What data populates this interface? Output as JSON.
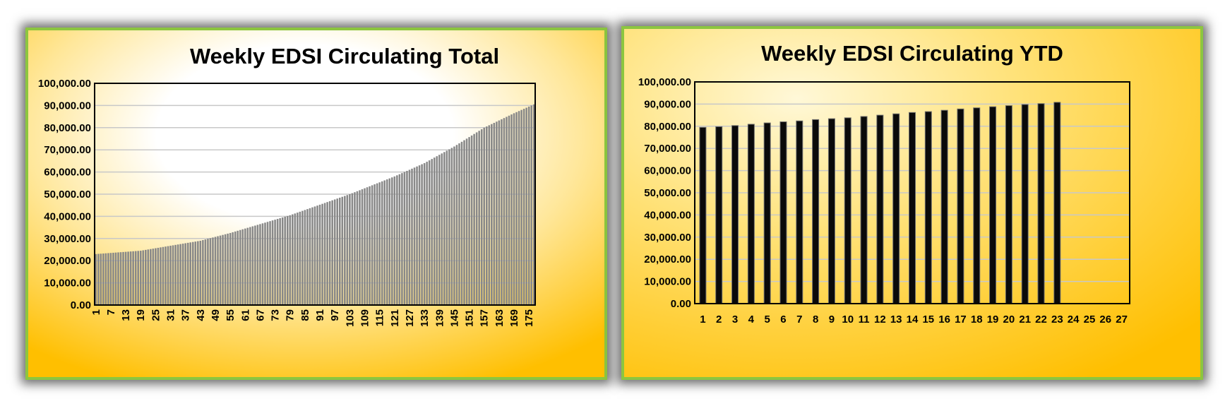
{
  "colors": {
    "panel_border": "#8cc63f",
    "gold": "#ffbf00",
    "light_center": "#ffffff",
    "gridline": "#c8c8c8",
    "bar_left": "#888888",
    "bar_right": "#0a0a0a"
  },
  "chart_data": [
    {
      "type": "bar",
      "title": "Weekly EDSI Circulating Total",
      "xlabel": "",
      "ylabel": "",
      "ylim": [
        0,
        100000
      ],
      "y_ticks": [
        0,
        10000,
        20000,
        30000,
        40000,
        50000,
        60000,
        70000,
        80000,
        90000,
        100000
      ],
      "y_tick_labels": [
        "0.00",
        "10,000.00",
        "20,000.00",
        "30,000.00",
        "40,000.00",
        "50,000.00",
        "60,000.00",
        "70,000.00",
        "80,000.00",
        "90,000.00",
        "100,000.00"
      ],
      "x_tick_labels": [
        "1",
        "7",
        "13",
        "19",
        "25",
        "31",
        "37",
        "43",
        "49",
        "55",
        "61",
        "67",
        "73",
        "79",
        "85",
        "91",
        "97",
        "103",
        "109",
        "115",
        "121",
        "127",
        "133",
        "139",
        "145",
        "151",
        "157",
        "163",
        "169",
        "175"
      ],
      "grid": true,
      "legend": "none",
      "categories_count": 177,
      "sampled_values": [
        {
          "week": 1,
          "value": 23000
        },
        {
          "week": 19,
          "value": 24500
        },
        {
          "week": 43,
          "value": 29000
        },
        {
          "week": 55,
          "value": 32500
        },
        {
          "week": 79,
          "value": 40500
        },
        {
          "week": 103,
          "value": 50000
        },
        {
          "week": 121,
          "value": 58000
        },
        {
          "week": 133,
          "value": 64000
        },
        {
          "week": 145,
          "value": 71500
        },
        {
          "week": 157,
          "value": 80000
        },
        {
          "week": 169,
          "value": 86500
        },
        {
          "week": 177,
          "value": 90500
        }
      ]
    },
    {
      "type": "bar",
      "title": "Weekly EDSI Circulating YTD",
      "xlabel": "",
      "ylabel": "",
      "ylim": [
        0,
        100000
      ],
      "y_ticks": [
        0,
        10000,
        20000,
        30000,
        40000,
        50000,
        60000,
        70000,
        80000,
        90000,
        100000
      ],
      "y_tick_labels": [
        "0.00",
        "10,000.00",
        "20,000.00",
        "30,000.00",
        "40,000.00",
        "50,000.00",
        "60,000.00",
        "70,000.00",
        "80,000.00",
        "90,000.00",
        "100,000.00"
      ],
      "categories": [
        "1",
        "2",
        "3",
        "4",
        "5",
        "6",
        "7",
        "8",
        "9",
        "10",
        "11",
        "12",
        "13",
        "14",
        "15",
        "16",
        "17",
        "18",
        "19",
        "20",
        "21",
        "22",
        "23",
        "24",
        "25",
        "26",
        "27"
      ],
      "values": [
        79500,
        79800,
        80300,
        80900,
        81500,
        82000,
        82400,
        83000,
        83400,
        83800,
        84400,
        85000,
        85600,
        86200,
        86600,
        87200,
        87800,
        88300,
        88800,
        89300,
        89800,
        90200,
        90800,
        null,
        null,
        null,
        null
      ],
      "grid": true,
      "legend": "none"
    }
  ]
}
